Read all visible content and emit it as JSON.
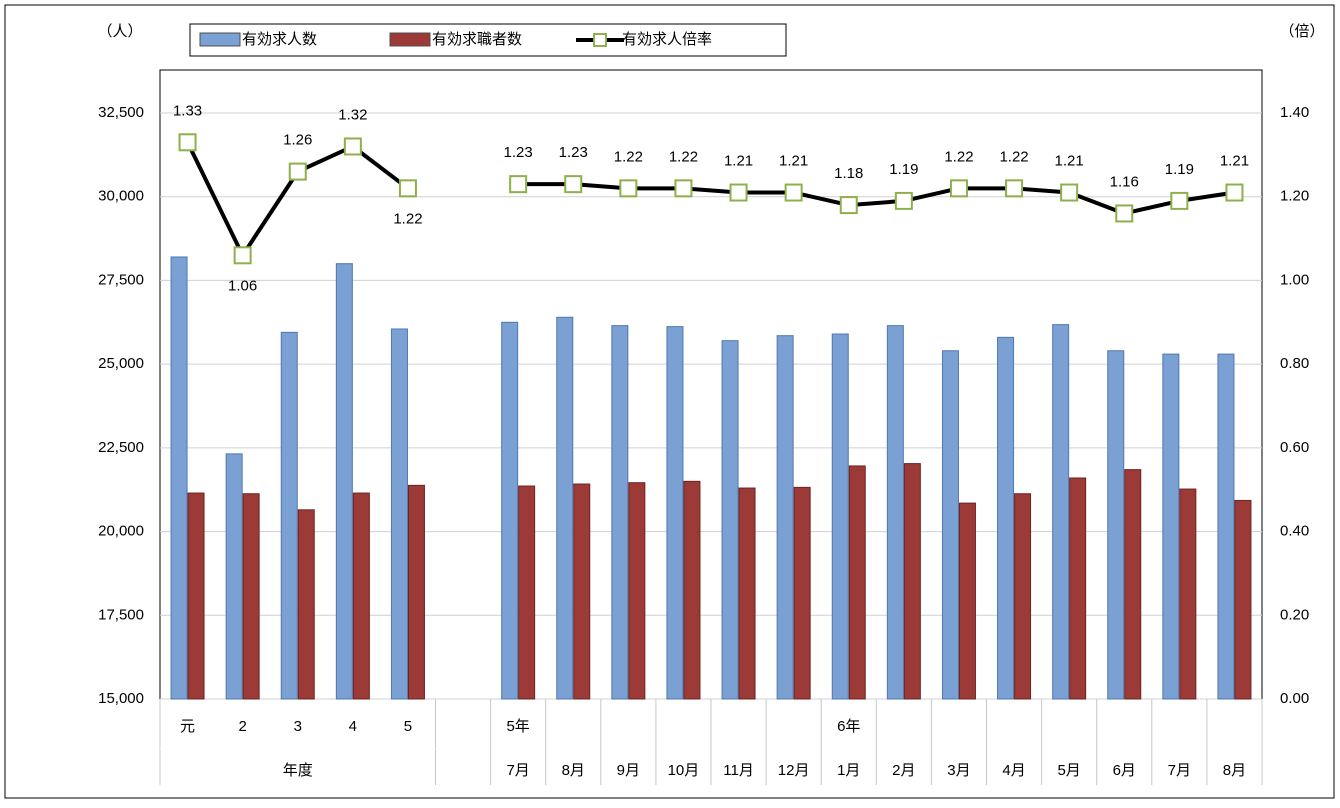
{
  "chart_data": {
    "type": "bar-line",
    "y_unit": "（人）",
    "y2_unit": "（倍）",
    "categories": [
      "元",
      "2",
      "3",
      "4",
      "5",
      null,
      "7月",
      "8月",
      "9月",
      "10月",
      "11月",
      "12月",
      "1月",
      "2月",
      "3月",
      "4月",
      "5月",
      "6月",
      "7月",
      "8月"
    ],
    "year_labels": [
      null,
      null,
      null,
      null,
      null,
      null,
      "5年",
      null,
      null,
      null,
      null,
      null,
      "6年",
      null,
      null,
      null,
      null,
      null,
      null,
      null
    ],
    "group_label": "年度",
    "series": [
      {
        "name": "有効求人数",
        "type": "bar",
        "color": "#7ba0d4",
        "values": [
          28200,
          22320,
          25950,
          28000,
          26050,
          null,
          26250,
          26400,
          26150,
          26120,
          25700,
          25850,
          25900,
          26150,
          25400,
          25800,
          26180,
          25400,
          25300,
          25300
        ]
      },
      {
        "name": "有効求職者数",
        "type": "bar",
        "color": "#9b3a37",
        "values": [
          21150,
          21130,
          20650,
          21150,
          21380,
          null,
          21360,
          21420,
          21460,
          21500,
          21300,
          21320,
          21960,
          22030,
          20850,
          21130,
          21600,
          21850,
          21270,
          20930
        ]
      },
      {
        "name": "有効求人倍率",
        "type": "line",
        "axis": "y2",
        "color": "#000000",
        "marker_color": "#8db04a",
        "values": [
          1.33,
          1.06,
          1.26,
          1.32,
          1.22,
          null,
          1.23,
          1.23,
          1.22,
          1.22,
          1.21,
          1.21,
          1.18,
          1.19,
          1.22,
          1.22,
          1.21,
          1.16,
          1.19,
          1.21
        ]
      }
    ],
    "ylim": [
      15000,
      32500
    ],
    "yticks": [
      {
        "value": 15000,
        "label": "15,000"
      },
      {
        "value": 17500,
        "label": "17,500"
      },
      {
        "value": 20000,
        "label": "20,000"
      },
      {
        "value": 22500,
        "label": "22,500"
      },
      {
        "value": 25000,
        "label": "25,000"
      },
      {
        "value": 27500,
        "label": "27,500"
      },
      {
        "value": 30000,
        "label": "30,000"
      },
      {
        "value": 32500,
        "label": "32,500"
      }
    ],
    "y2lim": [
      0,
      1.4
    ],
    "y2ticks": [
      {
        "value": 0,
        "label": "0.00"
      },
      {
        "value": 0.2,
        "label": "0.20"
      },
      {
        "value": 0.4,
        "label": "0.40"
      },
      {
        "value": 0.6,
        "label": "0.60"
      },
      {
        "value": 0.8,
        "label": "0.80"
      },
      {
        "value": 1.0,
        "label": "1.00"
      },
      {
        "value": 1.2,
        "label": "1.20"
      },
      {
        "value": 1.4,
        "label": "1.40"
      }
    ],
    "grid": true
  }
}
